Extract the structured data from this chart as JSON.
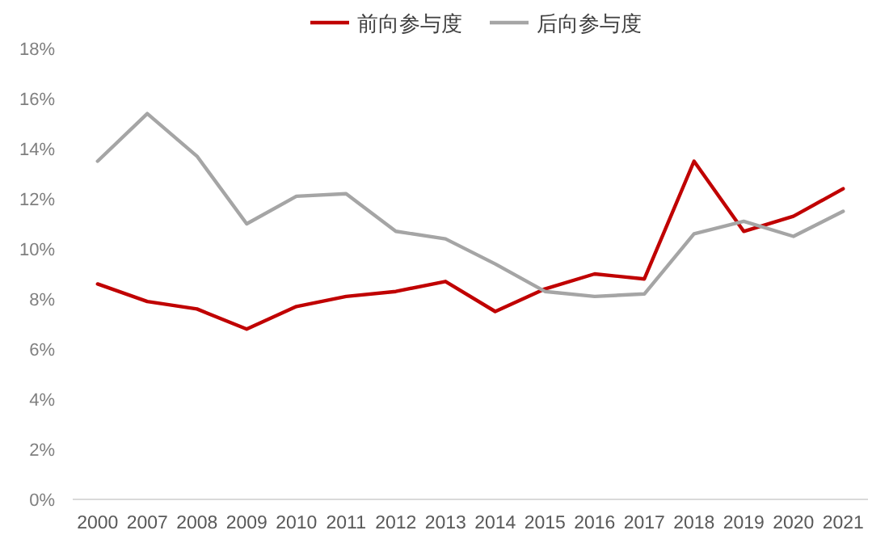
{
  "chart_data": {
    "type": "line",
    "categories": [
      "2000",
      "2007",
      "2008",
      "2009",
      "2010",
      "2011",
      "2012",
      "2013",
      "2014",
      "2015",
      "2016",
      "2017",
      "2018",
      "2019",
      "2020",
      "2021"
    ],
    "series": [
      {
        "name": "前向参与度",
        "color": "#c00000",
        "values": [
          8.6,
          7.9,
          7.6,
          6.8,
          7.7,
          8.1,
          8.3,
          8.7,
          7.5,
          8.4,
          9.0,
          8.8,
          13.5,
          10.7,
          11.3,
          12.4
        ]
      },
      {
        "name": "后向参与度",
        "color": "#a5a5a5",
        "values": [
          13.5,
          15.4,
          13.7,
          11.0,
          12.1,
          12.2,
          10.7,
          10.4,
          9.4,
          8.3,
          8.1,
          8.2,
          10.6,
          11.1,
          10.5,
          11.5
        ]
      }
    ],
    "ylim": [
      0,
      18
    ],
    "yticks": [
      {
        "value": 0,
        "label": "0%"
      },
      {
        "value": 2,
        "label": "2%"
      },
      {
        "value": 4,
        "label": "4%"
      },
      {
        "value": 6,
        "label": "6%"
      },
      {
        "value": 8,
        "label": "8%"
      },
      {
        "value": 10,
        "label": "10%"
      },
      {
        "value": 12,
        "label": "12%"
      },
      {
        "value": 14,
        "label": "14%"
      },
      {
        "value": 16,
        "label": "16%"
      },
      {
        "value": 18,
        "label": "18%"
      }
    ],
    "grid": false,
    "legend": "top",
    "marker": "none",
    "line_style": "solid"
  }
}
